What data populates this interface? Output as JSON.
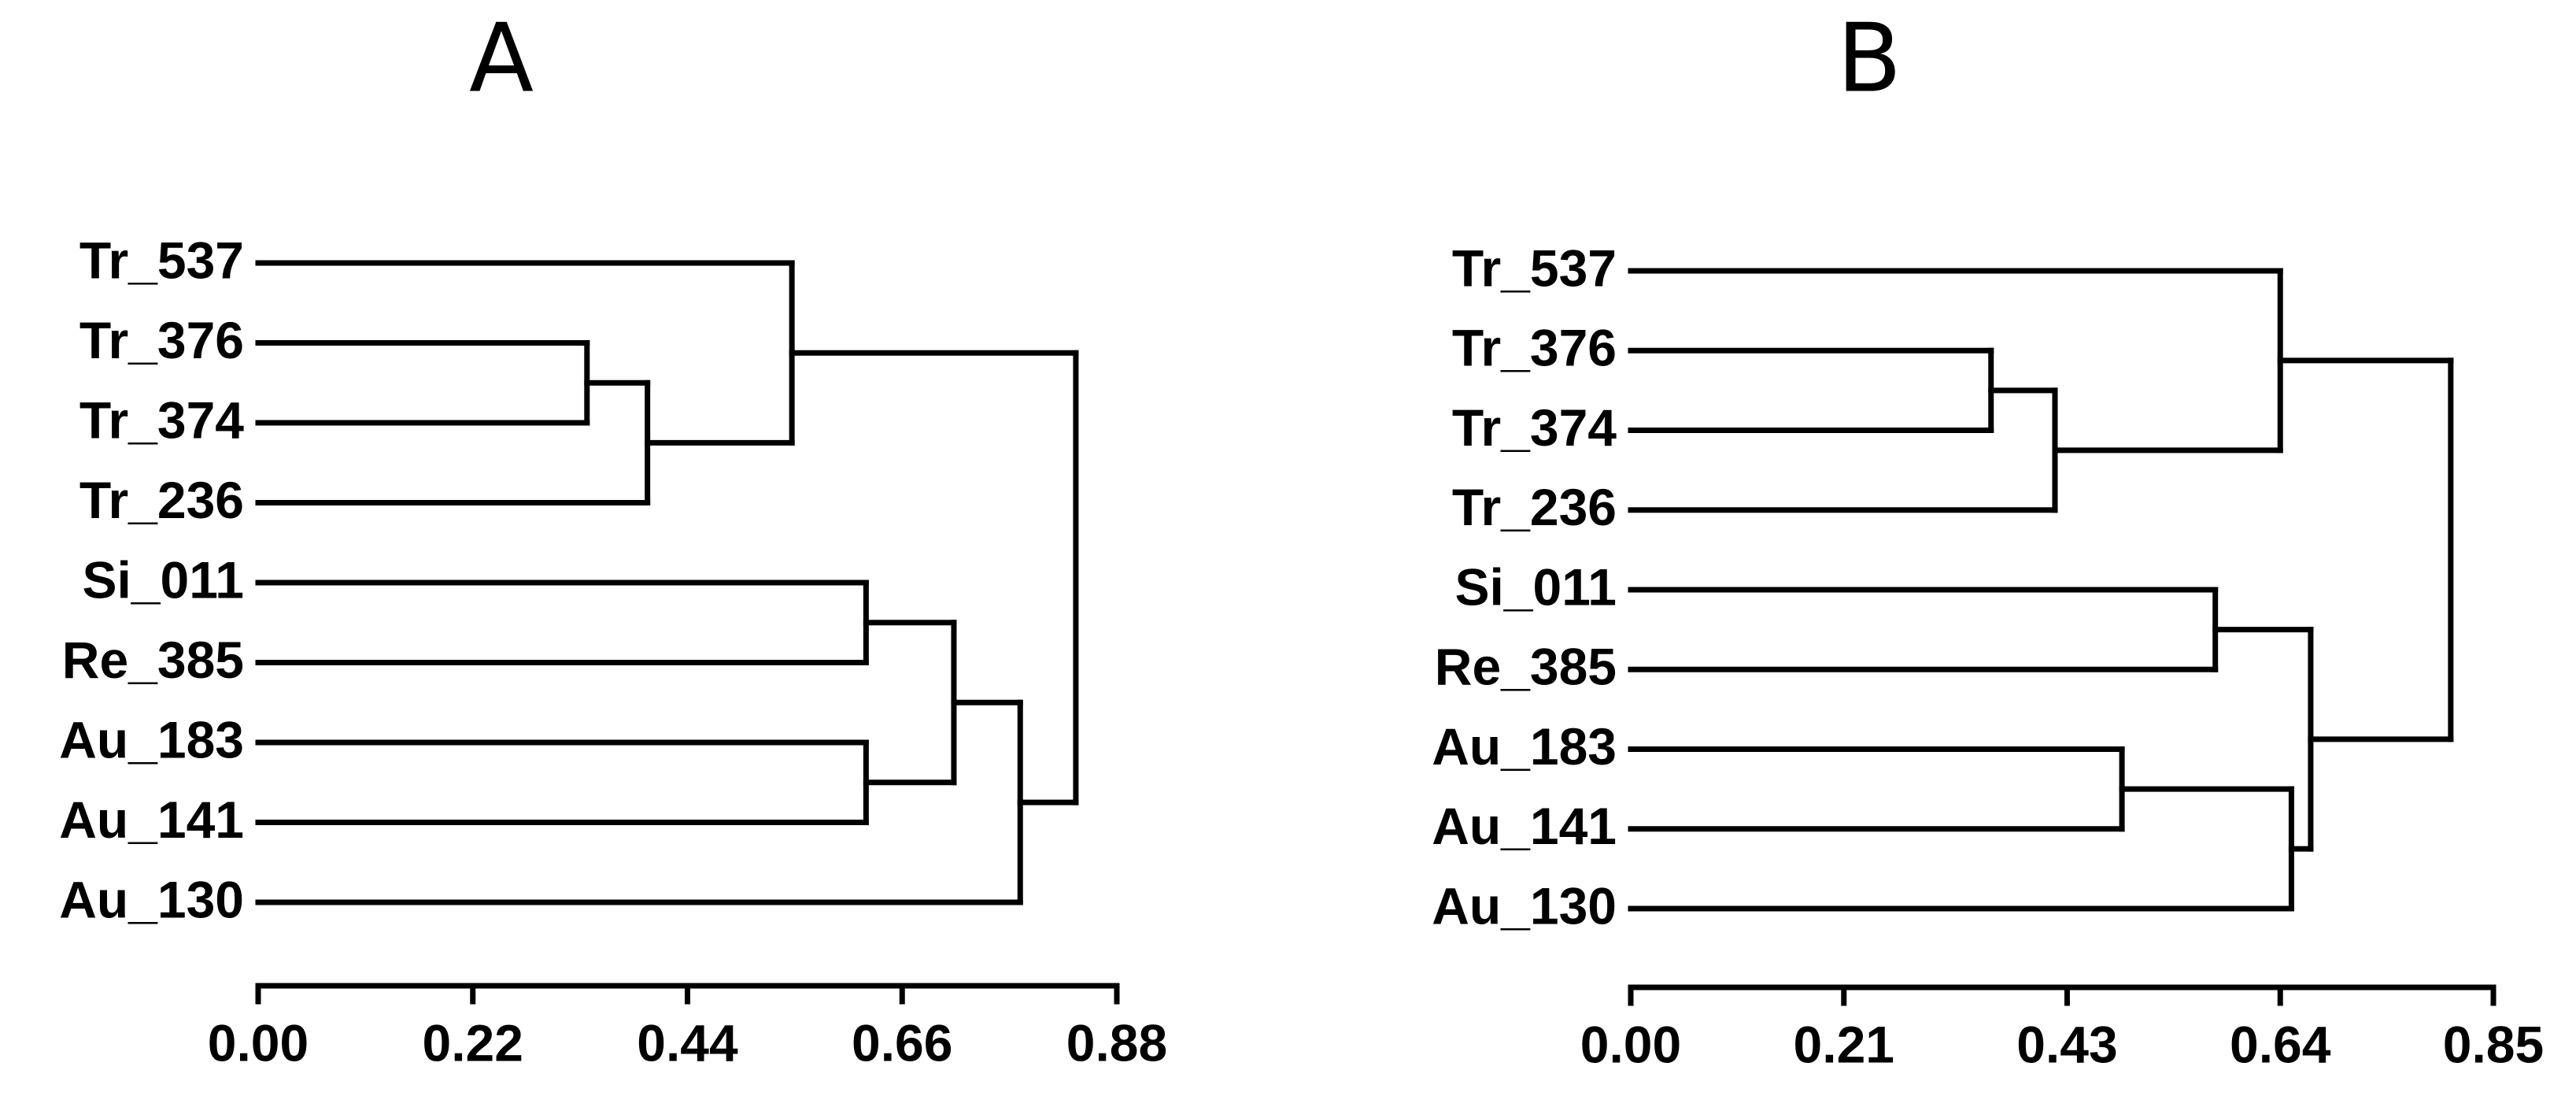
{
  "chart_data": [
    {
      "type": "dendrogram",
      "title": "A",
      "leaves": [
        "Tr_537",
        "Tr_376",
        "Tr_374",
        "Tr_236",
        "Si_011",
        "Re_385",
        "Au_183",
        "Au_141",
        "Au_130"
      ],
      "merges": [
        {
          "children": [
            1,
            2
          ],
          "height": 0.337
        },
        {
          "children": [
            9,
            3
          ],
          "height": 0.399
        },
        {
          "children": [
            0,
            10
          ],
          "height": 0.547
        },
        {
          "children": [
            4,
            5
          ],
          "height": 0.623
        },
        {
          "children": [
            6,
            7
          ],
          "height": 0.623
        },
        {
          "children": [
            12,
            13
          ],
          "height": 0.713
        },
        {
          "children": [
            14,
            8
          ],
          "height": 0.781
        },
        {
          "children": [
            11,
            15
          ],
          "height": 0.838
        }
      ],
      "xlim": [
        0,
        0.88
      ],
      "xticks": [
        {
          "value": 0,
          "label": "0.00"
        },
        {
          "value": 0.22,
          "label": "0.22"
        },
        {
          "value": 0.44,
          "label": "0.44"
        },
        {
          "value": 0.66,
          "label": "0.66"
        },
        {
          "value": 0.88,
          "label": "0.88"
        }
      ]
    },
    {
      "type": "dendrogram",
      "title": "B",
      "leaves": [
        "Tr_537",
        "Tr_376",
        "Tr_374",
        "Tr_236",
        "Si_011",
        "Re_385",
        "Au_183",
        "Au_141",
        "Au_130"
      ],
      "merges": [
        {
          "children": [
            1,
            2
          ],
          "height": 0.355
        },
        {
          "children": [
            9,
            3
          ],
          "height": 0.418
        },
        {
          "children": [
            0,
            10
          ],
          "height": 0.64
        },
        {
          "children": [
            4,
            5
          ],
          "height": 0.576
        },
        {
          "children": [
            6,
            7
          ],
          "height": 0.484
        },
        {
          "children": [
            13,
            8
          ],
          "height": 0.651
        },
        {
          "children": [
            12,
            14
          ],
          "height": 0.67
        },
        {
          "children": [
            11,
            15
          ],
          "height": 0.808
        }
      ],
      "xlim": [
        0,
        0.85
      ],
      "xticks": [
        {
          "value": 0,
          "label": "0.00"
        },
        {
          "value": 0.21,
          "label": "0.21"
        },
        {
          "value": 0.43,
          "label": "0.43"
        },
        {
          "value": 0.64,
          "label": "0.64"
        },
        {
          "value": 0.85,
          "label": "0.85"
        }
      ]
    }
  ]
}
